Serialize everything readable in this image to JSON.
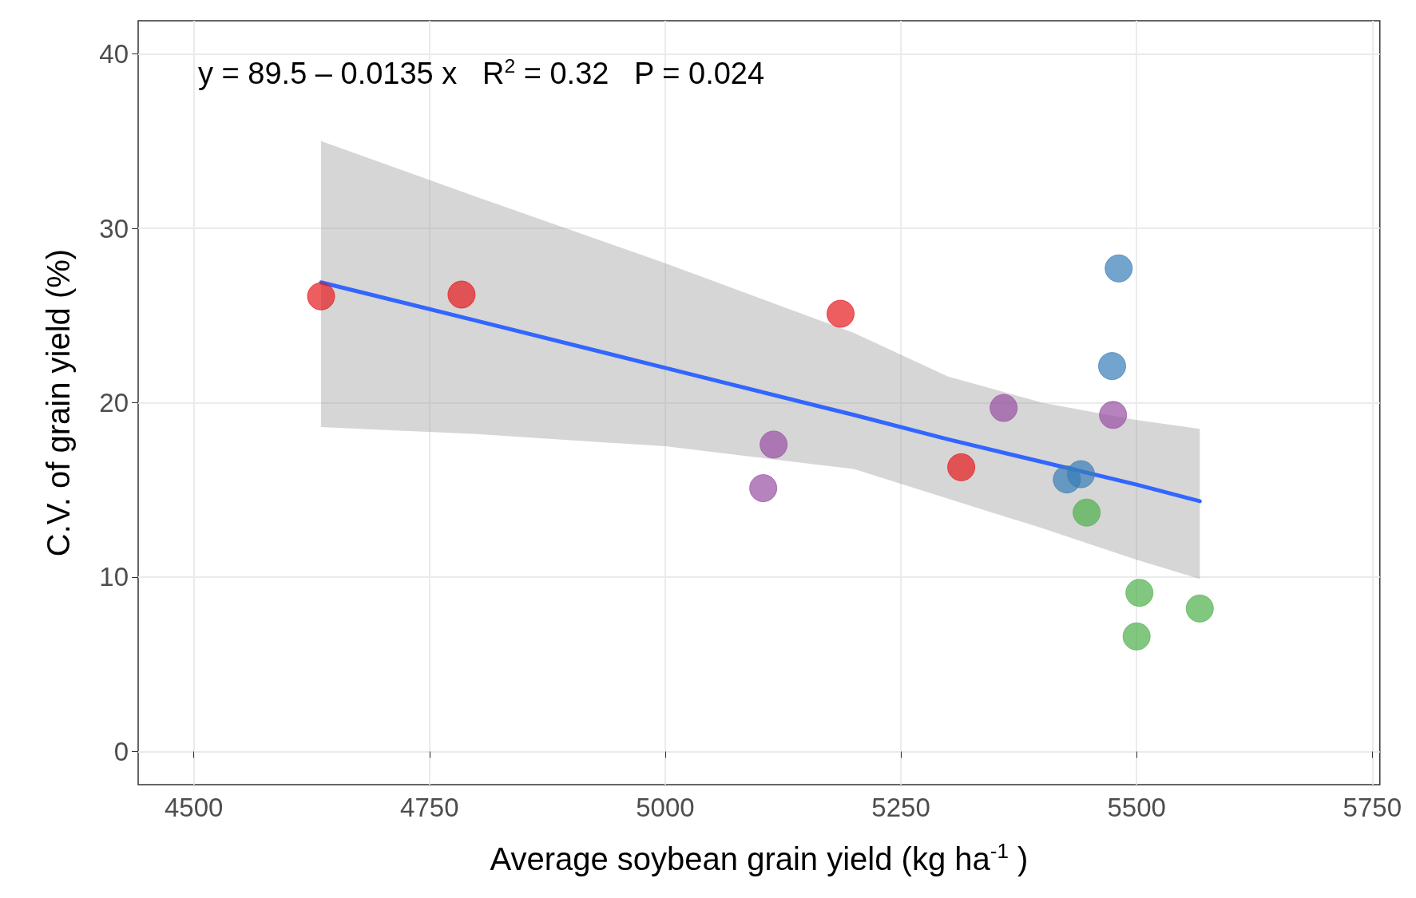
{
  "chart_data": {
    "type": "scatter",
    "xlabel": "Average soybean grain yield (kg ha$^{-1}$ )",
    "ylabel": "C.V. of grain yield (%)",
    "annotations": [
      "y = 89.5 – 0.0135 x   R$^{2}$ = 0.32   P = 0.024"
    ],
    "xlim": [
      4441,
      5758
    ],
    "ylim": [
      -1.9,
      41.9
    ],
    "xticks": [
      4500,
      4750,
      5000,
      5250,
      5500,
      5750
    ],
    "yticks": [
      0,
      10,
      20,
      30,
      40
    ],
    "grid": true,
    "marker": "circle",
    "series": [
      {
        "color": "#e41a1c",
        "x": [
          4635,
          4784,
          5186,
          5314
        ],
        "values": [
          26.1,
          26.2,
          25.1,
          16.3
        ]
      },
      {
        "color": "#984ea3",
        "x": [
          5104,
          5115,
          5359,
          5475
        ],
        "values": [
          15.1,
          17.6,
          19.7,
          19.3
        ]
      },
      {
        "color": "#377eb8",
        "x": [
          5481,
          5474,
          5426,
          5441
        ],
        "values": [
          27.7,
          22.1,
          15.6,
          15.9
        ]
      },
      {
        "color": "#4daf4a",
        "x": [
          5447,
          5503,
          5500,
          5567
        ],
        "values": [
          13.7,
          9.1,
          6.6,
          8.2
        ]
      },
      {
        "type": "line",
        "color": "#3366ff",
        "marker": "none",
        "x": [
          4635,
          4800,
          5000,
          5200,
          5300,
          5400,
          5500,
          5567
        ],
        "values": [
          26.9,
          24.7,
          22.0,
          19.3,
          17.9,
          16.6,
          15.3,
          14.35
        ],
        "lower": [
          18.6,
          18.2,
          17.5,
          16.2,
          14.5,
          12.8,
          11.0,
          9.9
        ],
        "upper": [
          35.0,
          31.8,
          28.0,
          24.0,
          21.5,
          20.0,
          19.0,
          18.5
        ]
      }
    ]
  }
}
